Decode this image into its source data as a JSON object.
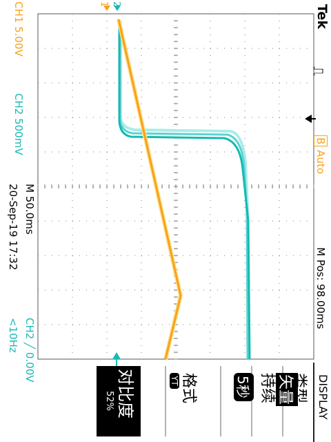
{
  "brand": "Tek",
  "trigger_symbol": "⎍",
  "trigger_mode_badge": "B",
  "trigger_mode": "Auto",
  "ch1": {
    "label": "CH1",
    "scale": "5.00V",
    "marker": "1"
  },
  "ch2": {
    "label": "CH2",
    "scale": "500mV",
    "marker": "2"
  },
  "timebase": "M 50.0ms",
  "timestamp": "20-Sep-19 17:32",
  "m_pos": "M Pos: 98.00ms",
  "trigger_info": "CH2 ╱ 0.00V",
  "freq": "<10Hz",
  "menu": {
    "title": "DISPLAY",
    "items": [
      {
        "label": "类型",
        "value": "矢量"
      },
      {
        "label": "持续",
        "value": "5秒"
      },
      {
        "label": "格式",
        "value": "YT"
      },
      {
        "label": "对比度",
        "value": "52%"
      }
    ]
  },
  "colors": {
    "ch1": "#f7a21c",
    "ch2": "#16b9b4",
    "grid": "#7a7a7a"
  }
}
